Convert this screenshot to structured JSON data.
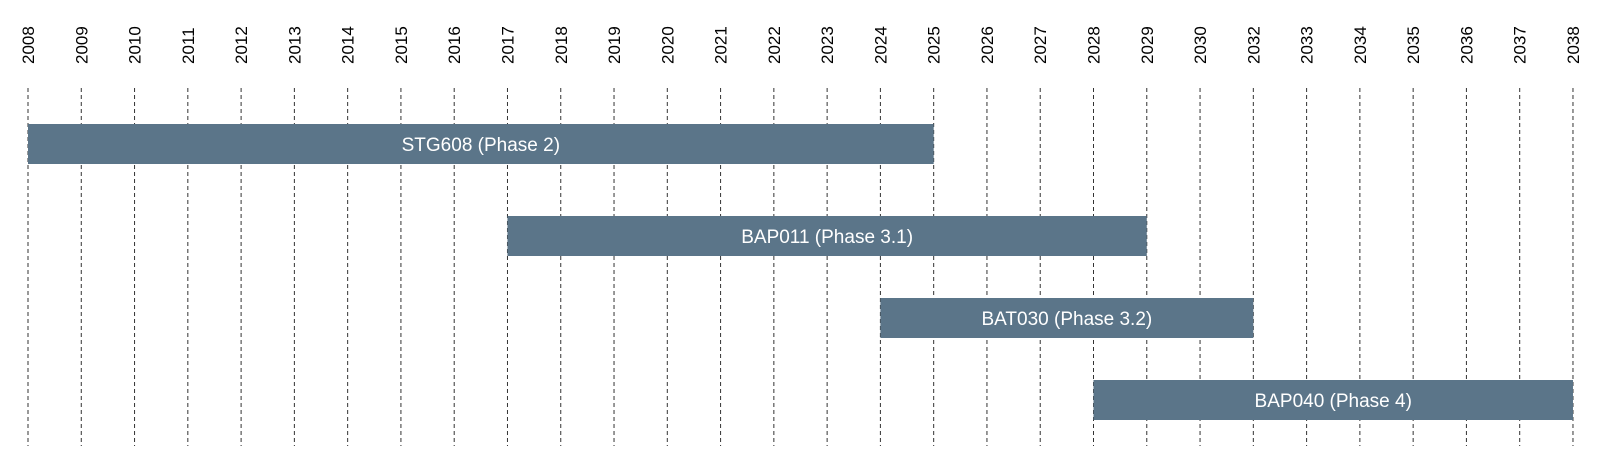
{
  "chart_data": {
    "type": "timeline",
    "title": "",
    "xlabel": "",
    "ylabel": "",
    "xlim": [
      2008,
      2038
    ],
    "grid": true,
    "tick_labels": [
      "2008",
      "2009",
      "2010",
      "2011",
      "2012",
      "2013",
      "2014",
      "2015",
      "2016",
      "2017",
      "2018",
      "2019",
      "2020",
      "2021",
      "2022",
      "2023",
      "2024",
      "2025",
      "2026",
      "2027",
      "2028",
      "2029",
      "2030",
      "2032",
      "2033",
      "2034",
      "2035",
      "2036",
      "2037",
      "2038"
    ],
    "tasks": [
      {
        "label": "STG608 (Phase 2)",
        "start": "2008",
        "end": "2025"
      },
      {
        "label": "BAP011 (Phase 3.1)",
        "start": "2017",
        "end": "2029"
      },
      {
        "label": "BAT030 (Phase 3.2)",
        "start": "2024",
        "end": "2032"
      },
      {
        "label": "BAP040 (Phase 4)",
        "start": "2028",
        "end": "2038"
      }
    ],
    "colors": {
      "bar": "#5b7589",
      "bar_text": "#ffffff",
      "grid": "#333333",
      "text": "#000000"
    }
  }
}
